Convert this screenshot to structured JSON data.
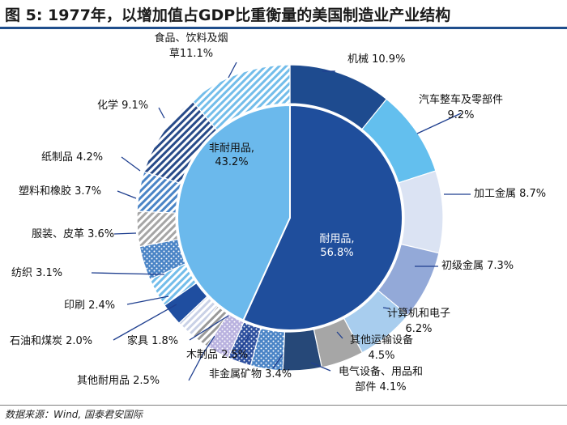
{
  "header": {
    "title": "图 5:   1977年，以增加值占GDP比重衡量的美国制造业产业结构"
  },
  "footer": {
    "source": "数据来源：Wind, 国泰君安国际"
  },
  "colors": {
    "navy": "#1f3f8f",
    "sky": "#6bb9ec",
    "dark": "#1e4b8f",
    "title_rule": "#1f4e8c"
  },
  "chart_data": {
    "type": "pie",
    "title": "1977年，以增加值占GDP比重衡量的美国制造业产业结构",
    "inner": {
      "slices": [
        {
          "name": "耐用品",
          "value": 56.8,
          "label_lines": [
            "耐用品,",
            "56.8%"
          ],
          "color": "#1f4e9c"
        },
        {
          "name": "非耐用品",
          "value": 43.2,
          "label_lines": [
            "非耐用品,",
            "43.2%"
          ],
          "color": "#6bb9ec"
        }
      ]
    },
    "outer": {
      "slices": [
        {
          "name": "机械",
          "value": 10.9,
          "label_lines": [
            "机械 10.9%"
          ],
          "fill": "#1e4b8f",
          "pattern": "solid"
        },
        {
          "name": "汽车整车及零部件",
          "value": 9.2,
          "label_lines": [
            "汽车整车及零部件",
            "9.2%"
          ],
          "fill": "#63bfee",
          "pattern": "solid"
        },
        {
          "name": "加工金属",
          "value": 8.7,
          "label_lines": [
            "加工金属 8.7%"
          ],
          "fill": "#dbe3f3",
          "pattern": "solid"
        },
        {
          "name": "初级金属",
          "value": 7.3,
          "label_lines": [
            "初级金属 7.3%"
          ],
          "fill": "#93a9d8",
          "pattern": "solid"
        },
        {
          "name": "计算机和电子",
          "value": 6.2,
          "label_lines": [
            "计算机和电子",
            "6.2%"
          ],
          "fill": "#a8cdee",
          "pattern": "solid"
        },
        {
          "name": "其他运输设备",
          "value": 4.5,
          "label_lines": [
            "其他运输设备",
            "4.5%"
          ],
          "fill": "#a6a6a6",
          "pattern": "solid"
        },
        {
          "name": "电气设备、用品和部件",
          "value": 4.1,
          "label_lines": [
            "电气设备、用品和",
            "部件 4.1%"
          ],
          "fill": "#264878",
          "pattern": "solid"
        },
        {
          "name": "非金属矿物",
          "value": 3.4,
          "label_lines": [
            "非金属矿物 3.4%"
          ],
          "fill": "#4a84c6",
          "pattern": "dots"
        },
        {
          "name": "木制品",
          "value": 2.5,
          "label_lines": [
            "木制品 2.5%"
          ],
          "fill": "#2d4f9e",
          "pattern": "dots"
        },
        {
          "name": "其他耐用品",
          "value": 2.5,
          "label_lines": [
            "其他耐用品 2.5%"
          ],
          "fill": "#b9b2df",
          "pattern": "dots"
        },
        {
          "name": "家具",
          "value": 1.8,
          "label_lines": [
            "家具 1.8%"
          ],
          "fill": "#9a9a9a",
          "pattern": "diag"
        },
        {
          "name": "石油和煤炭",
          "value": 2.0,
          "label_lines": [
            "石油和煤炭 2.0%"
          ],
          "fill": "#c9d1e6",
          "pattern": "diag"
        },
        {
          "name": "印刷",
          "value": 2.4,
          "label_lines": [
            "印刷 2.4%"
          ],
          "fill": "#1f4ea0",
          "pattern": "solid"
        },
        {
          "name": "纺织",
          "value": 3.1,
          "label_lines": [
            "纺织 3.1%"
          ],
          "fill": "#73bdea",
          "pattern": "diag"
        },
        {
          "name": "服装、皮革",
          "value": 3.6,
          "label_lines": [
            "服装、皮革 3.6%"
          ],
          "fill": "#4a84c6",
          "pattern": "dots"
        },
        {
          "name": "塑料和橡胶",
          "value": 3.7,
          "label_lines": [
            "塑料和橡胶 3.7%"
          ],
          "fill": "#a6a6a6",
          "pattern": "diag"
        },
        {
          "name": "纸制品",
          "value": 4.2,
          "label_lines": [
            "纸制品 4.2%"
          ],
          "fill": "#4a84c6",
          "pattern": "diag"
        },
        {
          "name": "化学",
          "value": 9.1,
          "label_lines": [
            "化学 9.1%"
          ],
          "fill": "#274a88",
          "pattern": "diag"
        },
        {
          "name": "食品、饮料及烟草",
          "value": 11.1,
          "label_lines": [
            "食品、饮料及烟",
            "草11.1%"
          ],
          "fill": "#73bdea",
          "pattern": "diag"
        }
      ]
    }
  }
}
